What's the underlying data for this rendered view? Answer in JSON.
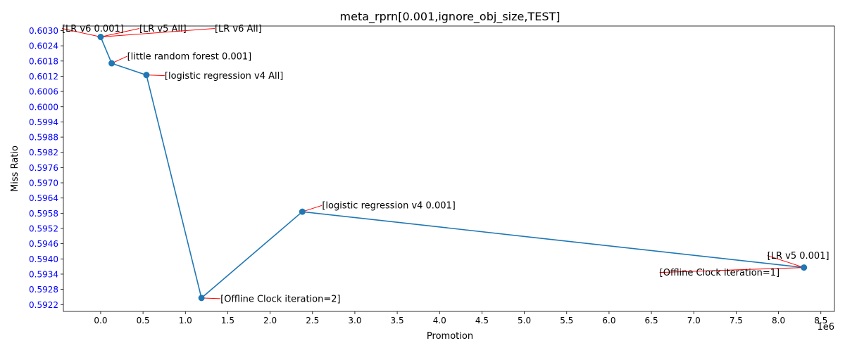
{
  "chart_data": {
    "type": "line",
    "title": "meta_rprn[0.001,ignore_obj_size,TEST]",
    "xlabel": "Promotion",
    "ylabel": "Miss Ratio",
    "x_offset_label": "1e6",
    "x_scale_factor": 1000000,
    "xlim": [
      -0.44,
      8.66
    ],
    "ylim": [
      0.59193,
      0.60318
    ],
    "x_ticks": [
      0.0,
      0.5,
      1.0,
      1.5,
      2.0,
      2.5,
      3.0,
      3.5,
      4.0,
      4.5,
      5.0,
      5.5,
      6.0,
      6.5,
      7.0,
      7.5,
      8.0,
      8.5
    ],
    "x_tick_labels": [
      "0.0",
      "0.5",
      "1.0",
      "1.5",
      "2.0",
      "2.5",
      "3.0",
      "3.5",
      "4.0",
      "4.5",
      "5.0",
      "5.5",
      "6.0",
      "6.5",
      "7.0",
      "7.5",
      "8.0",
      "8.5"
    ],
    "y_ticks": [
      0.5922,
      0.5928,
      0.5934,
      0.594,
      0.5946,
      0.5952,
      0.5958,
      0.5964,
      0.597,
      0.5976,
      0.5982,
      0.5988,
      0.5994,
      0.6,
      0.6006,
      0.6012,
      0.6018,
      0.6024,
      0.603
    ],
    "y_tick_labels": [
      "0.5922",
      "0.5928",
      "0.5934",
      "0.5940",
      "0.5946",
      "0.5952",
      "0.5958",
      "0.5964",
      "0.5970",
      "0.5976",
      "0.5982",
      "0.5988",
      "0.5994",
      "0.6000",
      "0.6006",
      "0.6012",
      "0.6018",
      "0.6024",
      "0.6030"
    ],
    "y_tick_color": "#0000ff",
    "line_color": "#1f77b4",
    "annotation_color": "#ff0000",
    "grid": false,
    "x": [
      0.0,
      0.13,
      0.54,
      1.19,
      2.38,
      8.3
    ],
    "y": [
      0.60275,
      0.60171,
      0.60125,
      0.59246,
      0.59586,
      0.59366
    ],
    "annotations": [
      {
        "text": "[LR v6 0.001]",
        "point": 0,
        "dx": -55,
        "dy": -12
      },
      {
        "text": "[LR v5 All]",
        "point": 0,
        "dx": 55,
        "dy": -12
      },
      {
        "text": "[LR v6 All]",
        "point": 0,
        "dx": 162,
        "dy": -12
      },
      {
        "text": "[little random forest 0.001]",
        "point": 1,
        "dx": 22,
        "dy": -10
      },
      {
        "text": "[logistic regression v4 All]",
        "point": 2,
        "dx": 26,
        "dy": 1
      },
      {
        "text": "[Offline Clock iteration=2]",
        "point": 3,
        "dx": 27,
        "dy": 1
      },
      {
        "text": "[logistic regression v4 0.001]",
        "point": 4,
        "dx": 28,
        "dy": -9
      },
      {
        "text": "[LR v5 0.001]",
        "point": 5,
        "dx": -52,
        "dy": -17
      },
      {
        "text": "[Offline Clock iteration=1]",
        "point": 5,
        "dx": -205,
        "dy": 7
      }
    ]
  }
}
